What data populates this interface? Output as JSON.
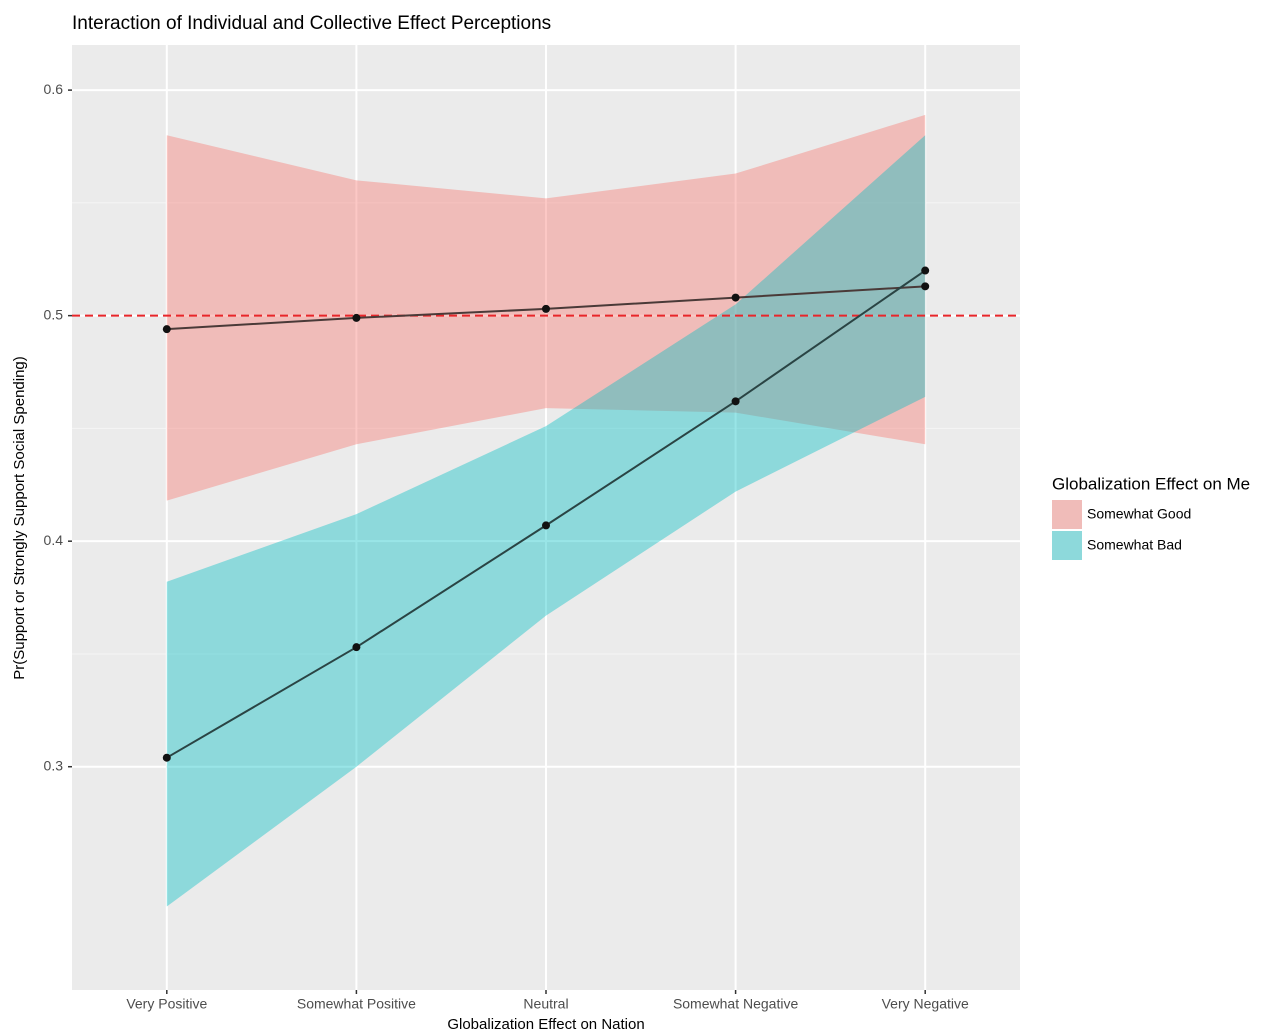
{
  "chart_data": {
    "type": "line",
    "title": "Interaction of Individual and Collective Effect Perceptions",
    "x_label": "Globalization Effect on Nation",
    "y_label": "Pr(Support or Strongly Support Social Spending)",
    "legend_title": "Globalization Effect on Me",
    "categories": [
      "Very Positive",
      "Somewhat Positive",
      "Neutral",
      "Somewhat Negative",
      "Very Negative"
    ],
    "series": [
      {
        "name": "Somewhat Good",
        "color": "#F8766D",
        "line_color": "#4a3a38",
        "values": [
          0.494,
          0.499,
          0.503,
          0.508,
          0.513
        ],
        "lower": [
          0.418,
          0.443,
          0.459,
          0.457,
          0.443
        ],
        "upper": [
          0.58,
          0.56,
          0.552,
          0.563,
          0.589
        ]
      },
      {
        "name": "Somewhat Bad",
        "color": "#00BFC4",
        "line_color": "#2a4444",
        "values": [
          0.304,
          0.353,
          0.407,
          0.462,
          0.52
        ],
        "lower": [
          0.238,
          0.3,
          0.367,
          0.422,
          0.464
        ],
        "upper": [
          0.382,
          0.412,
          0.451,
          0.505,
          0.58
        ]
      }
    ],
    "reference_line": {
      "value": 0.5,
      "color": "#e8262a"
    },
    "ylim": [
      0.201,
      0.62
    ],
    "yticks": [
      0.3,
      0.4,
      0.5,
      0.6
    ],
    "grid": true
  }
}
